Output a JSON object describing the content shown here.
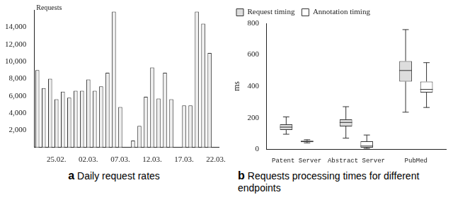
{
  "chart_data": [
    {
      "type": "bar",
      "label": "a",
      "title": "Daily request rates",
      "ylabel": "Requests",
      "categories": [
        null,
        null,
        null,
        "25.02.",
        null,
        null,
        null,
        null,
        "02.03.",
        null,
        null,
        null,
        null,
        "07.03.",
        null,
        null,
        null,
        null,
        "12.03.",
        null,
        null,
        null,
        null,
        "17.03.",
        null,
        null,
        null,
        null,
        "22.03."
      ],
      "values": [
        9000,
        6900,
        8000,
        5600,
        6500,
        5800,
        6600,
        6600,
        7900,
        6600,
        7100,
        8700,
        15800,
        4700,
        null,
        800,
        2500,
        5900,
        9300,
        5700,
        8700,
        5600,
        null,
        4900,
        4900,
        15800,
        14400,
        11000,
        null
      ],
      "color": "#eeeeee",
      "ylim": [
        0,
        16000
      ],
      "yticks": [
        {
          "value": 2000,
          "label": "2,000"
        },
        {
          "value": 4000,
          "label": "4,000"
        },
        {
          "value": 6000,
          "label": "6,000"
        },
        {
          "value": 8000,
          "label": "8,000"
        },
        {
          "value": 10000,
          "label": "10,000"
        },
        {
          "value": 12000,
          "label": "12,000"
        },
        {
          "value": 14000,
          "label": "14,000"
        }
      ],
      "grid": false
    },
    {
      "type": "box",
      "label": "b",
      "title": "Requests processing times for different endpoints",
      "ylabel": "ms",
      "categories": [
        "Patent Server",
        "Abstract Server",
        "PubMed"
      ],
      "series": [
        {
          "name": "Request timing",
          "color": "#dddddd",
          "values": [
            {
              "min": 95,
              "q1": 122,
              "median": 140,
              "q3": 158,
              "max": 205
            },
            {
              "min": 70,
              "q1": 145,
              "median": 170,
              "q3": 190,
              "max": 270
            },
            {
              "min": 235,
              "q1": 430,
              "median": 500,
              "q3": 560,
              "max": 760
            }
          ]
        },
        {
          "name": "Annotation timing",
          "color": "#ffffff",
          "values": [
            {
              "min": 40,
              "q1": 45,
              "median": 50,
              "q3": 52,
              "max": 60
            },
            {
              "min": 5,
              "q1": 10,
              "median": 20,
              "q3": 50,
              "max": 90
            },
            {
              "min": 265,
              "q1": 360,
              "median": 380,
              "q3": 430,
              "max": 550
            }
          ]
        }
      ],
      "ylim": [
        0,
        800
      ],
      "yticks": [
        0,
        200,
        400,
        600,
        800
      ],
      "grid": false,
      "legend": "upper left"
    }
  ]
}
